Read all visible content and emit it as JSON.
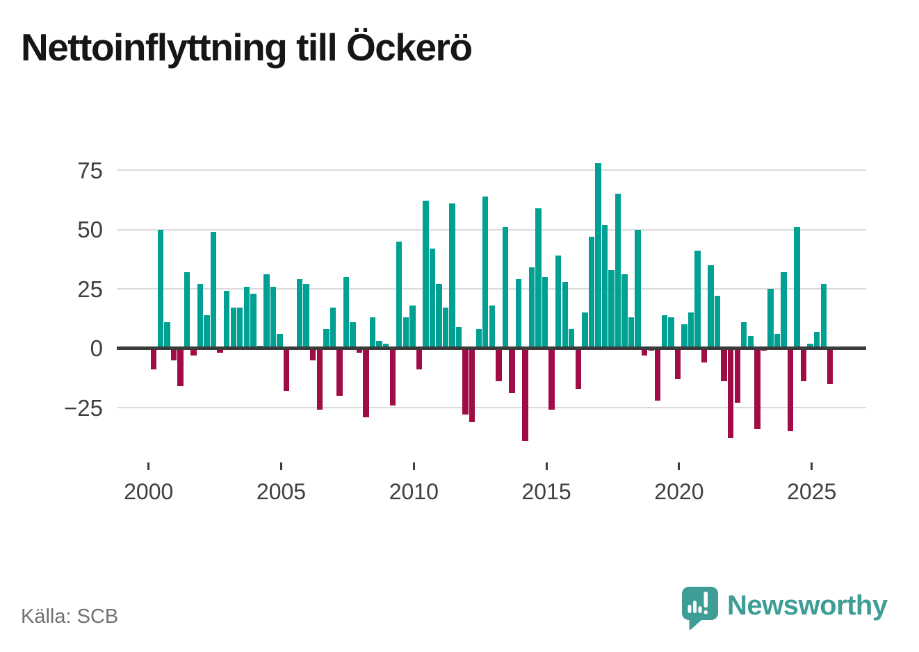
{
  "title": "Nettoinflyttning till Öckerö",
  "source": "Källa: SCB",
  "brand": {
    "name": "Newsworthy",
    "color": "#3e9d95"
  },
  "colors": {
    "positive_bar": "#00a192",
    "negative_bar": "#a00d46",
    "gridline": "#dcdcdc",
    "zero_line": "#3b3b3b",
    "axis_text": "#3f3f3f",
    "title_text": "#161616",
    "source_text": "#717171"
  },
  "chart_data": {
    "type": "bar",
    "title": "Nettoinflyttning till Öckerö",
    "xlabel": "",
    "ylabel": "",
    "grid": "horizontal",
    "legend": "none",
    "ylim": [
      -45,
      88
    ],
    "y_ticks": [
      {
        "value": 75,
        "label": "75"
      },
      {
        "value": 50,
        "label": "50"
      },
      {
        "value": 25,
        "label": "25"
      },
      {
        "value": 0,
        "label": "0"
      },
      {
        "value": -25,
        "label": "−25"
      }
    ],
    "x_ticks": [
      {
        "year": 2000,
        "label": "2000"
      },
      {
        "year": 2005,
        "label": "2005"
      },
      {
        "year": 2010,
        "label": "2010"
      },
      {
        "year": 2015,
        "label": "2015"
      },
      {
        "year": 2020,
        "label": "2020"
      },
      {
        "year": 2025,
        "label": "2025"
      }
    ],
    "x": [
      "2000 Q1",
      "2000 Q2",
      "2000 Q3",
      "2000 Q4",
      "2001 Q1",
      "2001 Q2",
      "2001 Q3",
      "2001 Q4",
      "2002 Q1",
      "2002 Q2",
      "2002 Q3",
      "2002 Q4",
      "2003 Q1",
      "2003 Q2",
      "2003 Q3",
      "2003 Q4",
      "2004 Q1",
      "2004 Q2",
      "2004 Q3",
      "2004 Q4",
      "2005 Q1",
      "2005 Q2",
      "2005 Q3",
      "2005 Q4",
      "2006 Q1",
      "2006 Q2",
      "2006 Q3",
      "2006 Q4",
      "2007 Q1",
      "2007 Q2",
      "2007 Q3",
      "2007 Q4",
      "2008 Q1",
      "2008 Q2",
      "2008 Q3",
      "2008 Q4",
      "2009 Q1",
      "2009 Q2",
      "2009 Q3",
      "2009 Q4",
      "2010 Q1",
      "2010 Q2",
      "2010 Q3",
      "2010 Q4",
      "2011 Q1",
      "2011 Q2",
      "2011 Q3",
      "2011 Q4",
      "2012 Q1",
      "2012 Q2",
      "2012 Q3",
      "2012 Q4",
      "2013 Q1",
      "2013 Q2",
      "2013 Q3",
      "2013 Q4",
      "2014 Q1",
      "2014 Q2",
      "2014 Q3",
      "2014 Q4",
      "2015 Q1",
      "2015 Q2",
      "2015 Q3",
      "2015 Q4",
      "2016 Q1",
      "2016 Q2",
      "2016 Q3",
      "2016 Q4",
      "2017 Q1",
      "2017 Q2",
      "2017 Q3",
      "2017 Q4",
      "2018 Q1",
      "2018 Q2",
      "2018 Q3",
      "2018 Q4",
      "2019 Q1",
      "2019 Q2",
      "2019 Q3",
      "2019 Q4",
      "2020 Q1",
      "2020 Q2",
      "2020 Q3",
      "2020 Q4",
      "2021 Q1",
      "2021 Q2",
      "2021 Q3",
      "2021 Q4",
      "2022 Q1",
      "2022 Q2",
      "2022 Q3",
      "2022 Q4",
      "2023 Q1",
      "2023 Q2",
      "2023 Q3",
      "2023 Q4",
      "2024 Q1",
      "2024 Q2",
      "2024 Q3",
      "2024 Q4",
      "2025 Q1",
      "2025 Q2",
      "2025 Q3"
    ],
    "values": [
      -9,
      50,
      11,
      -5,
      -16,
      32,
      -3,
      27,
      14,
      49,
      -2,
      24,
      17,
      17,
      26,
      23,
      1,
      31,
      26,
      6,
      -18,
      0,
      29,
      27,
      -5,
      -26,
      8,
      17,
      -20,
      30,
      11,
      -2,
      -29,
      13,
      3,
      2,
      -24,
      45,
      13,
      18,
      -9,
      62,
      42,
      27,
      17,
      61,
      9,
      -28,
      -31,
      8,
      64,
      18,
      -14,
      51,
      -19,
      29,
      -39,
      34,
      59,
      30,
      -26,
      39,
      28,
      8,
      -17,
      15,
      47,
      78,
      52,
      33,
      65,
      31,
      13,
      50,
      -3,
      -1,
      -22,
      14,
      13,
      -13,
      10,
      15,
      41,
      -6,
      35,
      22,
      -14,
      -38,
      -23,
      11,
      5,
      -34,
      -1,
      25,
      6,
      32,
      -35,
      51,
      -14,
      2,
      7,
      27,
      -15
    ]
  }
}
